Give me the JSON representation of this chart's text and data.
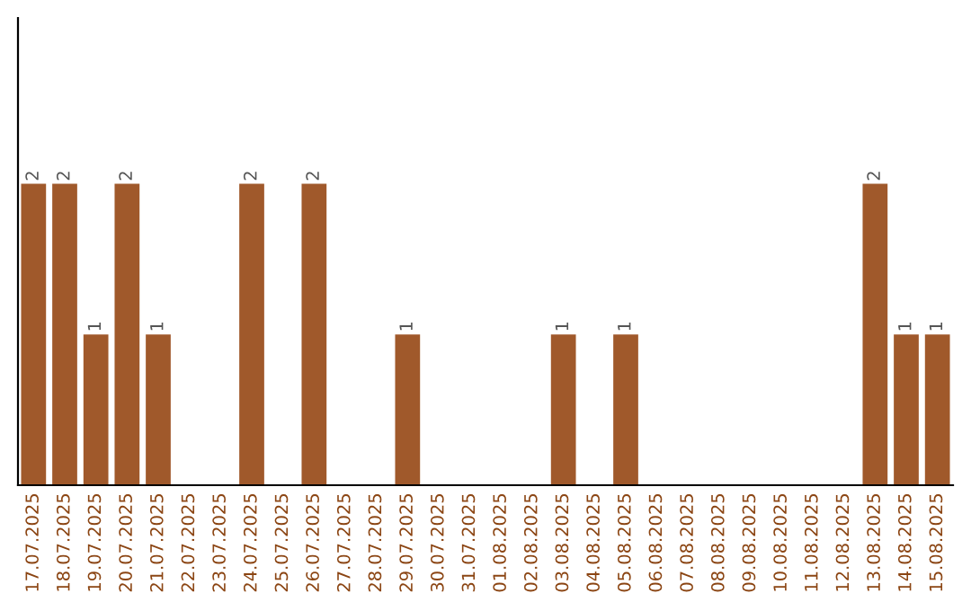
{
  "chart_data": {
    "type": "bar",
    "categories": [
      "17.07.2025",
      "18.07.2025",
      "19.07.2025",
      "20.07.2025",
      "21.07.2025",
      "22.07.2025",
      "23.07.2025",
      "24.07.2025",
      "25.07.2025",
      "26.07.2025",
      "27.07.2025",
      "28.07.2025",
      "29.07.2025",
      "30.07.2025",
      "31.07.2025",
      "01.08.2025",
      "02.08.2025",
      "03.08.2025",
      "04.08.2025",
      "05.08.2025",
      "06.08.2025",
      "07.08.2025",
      "08.08.2025",
      "09.08.2025",
      "10.08.2025",
      "11.08.2025",
      "12.08.2025",
      "13.08.2025",
      "14.08.2025",
      "15.08.2025"
    ],
    "values": [
      2,
      2,
      1,
      2,
      1,
      0,
      0,
      2,
      0,
      2,
      0,
      0,
      1,
      0,
      0,
      0,
      0,
      1,
      0,
      1,
      0,
      0,
      0,
      0,
      0,
      0,
      0,
      2,
      1,
      1
    ],
    "value_labels": [
      "2",
      "2",
      "1",
      "2",
      "1",
      null,
      null,
      "2",
      null,
      "2",
      null,
      null,
      "1",
      null,
      null,
      null,
      null,
      "1",
      null,
      "1",
      null,
      null,
      null,
      null,
      null,
      null,
      null,
      "2",
      "1",
      "1"
    ],
    "color": "#a0592b",
    "ylim": [
      0,
      3.1
    ],
    "tick_labels": "x",
    "grid": false,
    "legend": false
  }
}
